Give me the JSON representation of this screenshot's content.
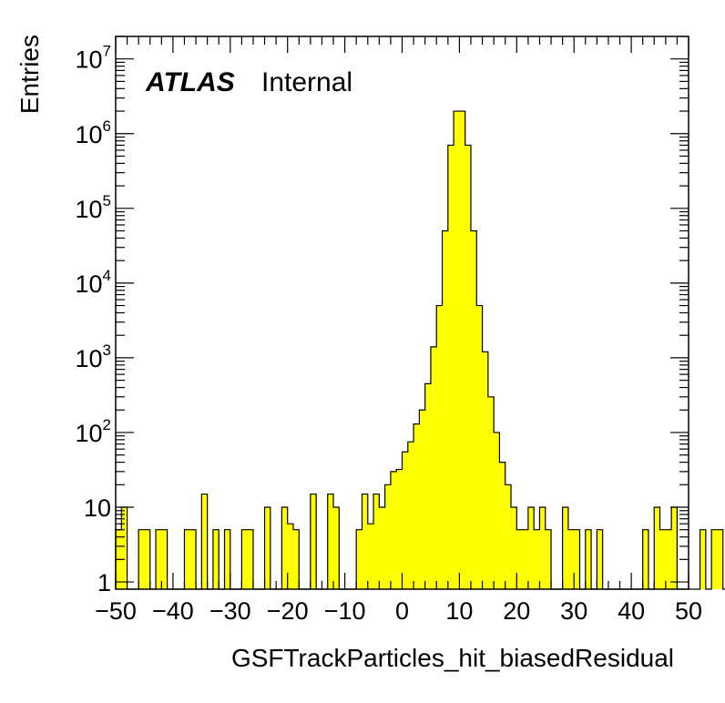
{
  "chart_data": {
    "type": "histogram",
    "title": "",
    "xlabel": "GSFTrackParticles_hit_biasedResidual",
    "ylabel": "Entries",
    "xlim": [
      -50,
      50
    ],
    "ylim": [
      0.8,
      20000000
    ],
    "yscale": "log",
    "bin_width": 1,
    "x_ticks": [
      -50,
      -40,
      -30,
      -20,
      -10,
      0,
      10,
      20,
      30,
      40,
      50
    ],
    "x_tick_labels": [
      "−50",
      "−40",
      "−30",
      "−20",
      "−10",
      "0",
      "10",
      "20",
      "30",
      "40",
      "50"
    ],
    "y_ticks": [
      {
        "value": 1,
        "base": "1",
        "exp": ""
      },
      {
        "value": 10,
        "base": "10",
        "exp": ""
      },
      {
        "value": 100,
        "base": "10",
        "exp": "2"
      },
      {
        "value": 1000,
        "base": "10",
        "exp": "3"
      },
      {
        "value": 10000,
        "base": "10",
        "exp": "4"
      },
      {
        "value": 100000,
        "base": "10",
        "exp": "5"
      },
      {
        "value": 1000000,
        "base": "10",
        "exp": "6"
      },
      {
        "value": 10000000,
        "base": "10",
        "exp": "7"
      }
    ],
    "bin_edges_start": -50,
    "counts": [
      5,
      10,
      0,
      0,
      5,
      5,
      0,
      5,
      5,
      0,
      0,
      0,
      5,
      5,
      0,
      15,
      0,
      5,
      0,
      5,
      0,
      0,
      5,
      5,
      0,
      0,
      10,
      0,
      0,
      10,
      6,
      5,
      0,
      0,
      15,
      0,
      0,
      15,
      10,
      0,
      0,
      0,
      5,
      15,
      6,
      15,
      10,
      20,
      30,
      32,
      55,
      75,
      130,
      200,
      450,
      1400,
      5000,
      50000,
      700000,
      2000000,
      2000000,
      700000,
      50000,
      5000,
      1200,
      300,
      100,
      40,
      20,
      10,
      5,
      5,
      10,
      5,
      10,
      5,
      0,
      0,
      10,
      5,
      5,
      0,
      5,
      0,
      5,
      0,
      0,
      0,
      0,
      0,
      0,
      0,
      5,
      0,
      10,
      5,
      5,
      10,
      0,
      0,
      0,
      0,
      5,
      0,
      5,
      5,
      0,
      0
    ]
  },
  "labels": {
    "atlas": "ATLAS",
    "internal": "Internal"
  },
  "colors": {
    "fill": "#ffff00",
    "line": "#000000",
    "background": "#ffffff"
  }
}
